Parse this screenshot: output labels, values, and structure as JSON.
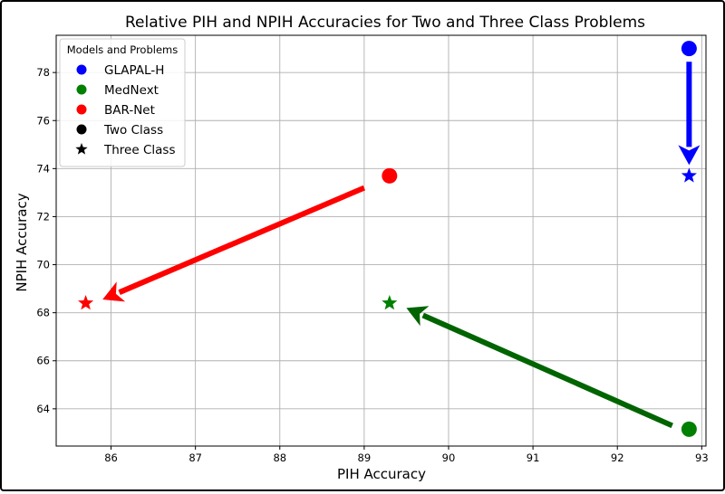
{
  "chart_data": {
    "type": "scatter",
    "title": "Relative PIH and NPIH Accuracies for Two and Three Class Problems",
    "xlabel": "PIH Accuracy",
    "ylabel": "NPIH Accuracy",
    "xlim": [
      85.35,
      93.05
    ],
    "ylim": [
      62.45,
      79.55
    ],
    "xticks": [
      86,
      87,
      88,
      89,
      90,
      91,
      92,
      93
    ],
    "yticks": [
      64,
      66,
      68,
      70,
      72,
      74,
      76,
      78
    ],
    "grid": true,
    "legend": {
      "title": "Models and Problems",
      "placement": "top-left",
      "entries": [
        {
          "label": "GLAPAL-H",
          "marker": "circle",
          "color": "#0000ff"
        },
        {
          "label": "MedNext",
          "marker": "circle",
          "color": "#008000"
        },
        {
          "label": "BAR-Net",
          "marker": "circle",
          "color": "#ff0000"
        },
        {
          "label": "Two Class",
          "marker": "circle",
          "color": "#000000"
        },
        {
          "label": "Three Class",
          "marker": "star",
          "color": "#000000"
        }
      ]
    },
    "series": [
      {
        "name": "GLAPAL-H",
        "color": "#0000ff",
        "two_class": {
          "x": 92.85,
          "y": 79.0
        },
        "three_class": {
          "x": 92.85,
          "y": 73.7
        }
      },
      {
        "name": "MedNext",
        "color": "#008000",
        "arrow_color": "#006400",
        "two_class": {
          "x": 92.85,
          "y": 63.15
        },
        "three_class": {
          "x": 89.3,
          "y": 68.4
        }
      },
      {
        "name": "BAR-Net",
        "color": "#ff0000",
        "two_class": {
          "x": 89.3,
          "y": 73.7
        },
        "three_class": {
          "x": 85.7,
          "y": 68.4
        }
      }
    ],
    "arrows": [
      {
        "series": "GLAPAL-H",
        "from": [
          92.85,
          78.45
        ],
        "to": [
          92.85,
          74.15
        ],
        "color": "#0000ff"
      },
      {
        "series": "MedNext",
        "from": [
          92.65,
          63.3
        ],
        "to": [
          89.5,
          68.2
        ],
        "color": "#006400"
      },
      {
        "series": "BAR-Net",
        "from": [
          89.0,
          73.2
        ],
        "to": [
          85.9,
          68.55
        ],
        "color": "#ff0000"
      }
    ]
  }
}
